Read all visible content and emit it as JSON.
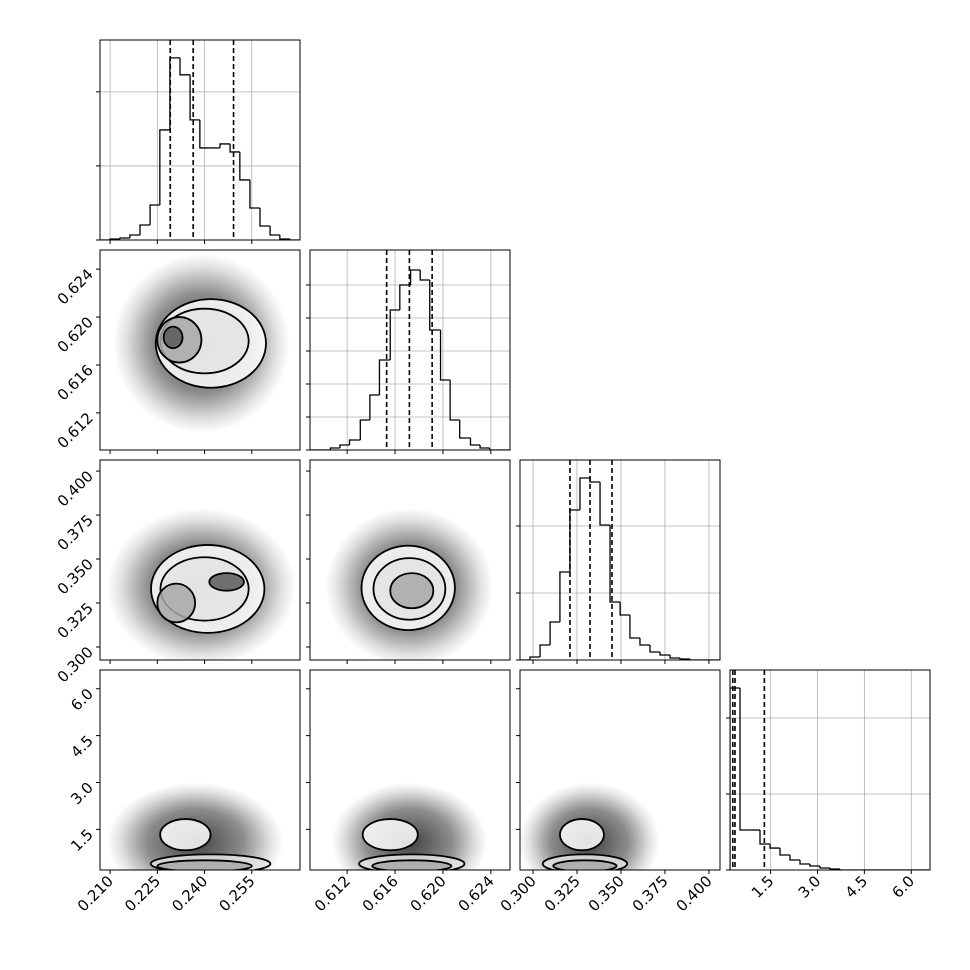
{
  "chart_data": {
    "type": "corner",
    "params": [
      {
        "lim": [
          0.2068,
          0.2703
        ],
        "ticks": [
          {
            "value": 0.21,
            "label": "0.210"
          },
          0.225,
          {
            "value": 0.24,
            "label": "0.240"
          },
          0.255
        ],
        "quantiles": [
          0.2291,
          0.2364,
          0.2492
        ],
        "hist": {
          "bins": [
            0.2068,
            0.21,
            0.2132,
            0.2163,
            0.2195,
            0.2227,
            0.2258,
            0.229,
            0.2322,
            0.2354,
            0.2385,
            0.2417,
            0.2449,
            0.2481,
            0.2512,
            0.2544,
            0.2576,
            0.2608,
            0.2639,
            0.2671,
            0.2703
          ],
          "values": [
            0,
            14,
            27,
            68,
            203,
            473,
            1486,
            2459,
            2230,
            1622,
            1243,
            1243,
            1297,
            1189,
            811,
            432,
            189,
            68,
            14,
            0
          ],
          "ylim": [
            0,
            2700
          ],
          "yticks": [
            0,
            1000,
            2000
          ]
        }
      },
      {
        "lim": [
          0.6089,
          0.6256
        ],
        "ticks": [
          0.612,
          0.616,
          {
            "value": 0.62,
            "label": "0.620"
          },
          0.624
        ],
        "quantiles": [
          0.6153,
          0.6172,
          0.6191
        ],
        "hist": {
          "bins": [
            0.6089,
            0.6097,
            0.6106,
            0.6114,
            0.6122,
            0.6131,
            0.6139,
            0.6147,
            0.6156,
            0.6164,
            0.6173,
            0.6181,
            0.6189,
            0.6198,
            0.6206,
            0.6214,
            0.6223,
            0.6231,
            0.6239,
            0.6248,
            0.6256
          ],
          "values": [
            0,
            0,
            61,
            152,
            303,
            909,
            1667,
            2727,
            4242,
            5000,
            5455,
            5152,
            3636,
            2121,
            909,
            364,
            152,
            61,
            0,
            0
          ],
          "ylim": [
            0,
            6060
          ],
          "yticks": [
            0,
            1000,
            2000,
            3000,
            4000,
            5000
          ]
        },
        "pairs": [
          {
            "cloud": {
              "x": 0.239,
              "y": 0.6178,
              "rx": 0.028,
              "ry": 0.0075
            },
            "contours": [
              {
                "x": 0.242,
                "y": 0.6178,
                "rx": 0.0175,
                "ry": 0.0037
              },
              {
                "x": 0.24,
                "y": 0.618,
                "rx": 0.014,
                "ry": 0.0027
              },
              {
                "x": 0.232,
                "y": 0.6181,
                "rx": 0.007,
                "ry": 0.0019
              },
              {
                "x": 0.23,
                "y": 0.6183,
                "rx": 0.003,
                "ry": 0.0009
              }
            ]
          }
        ]
      },
      {
        "lim": [
          0.2926,
          0.4063
        ],
        "ticks": [
          {
            "value": 0.3,
            "label": "0.300"
          },
          0.325,
          {
            "value": 0.35,
            "label": "0.350"
          },
          0.375,
          {
            "value": 0.4,
            "label": "0.400"
          }
        ],
        "quantiles": [
          0.321,
          0.3324,
          0.3449
        ],
        "hist": {
          "bins": [
            0.2926,
            0.2983,
            0.304,
            0.3097,
            0.3153,
            0.321,
            0.3267,
            0.3324,
            0.3381,
            0.3438,
            0.3495,
            0.3551,
            0.3608,
            0.3665,
            0.3722,
            0.3779,
            0.3836,
            0.3893,
            0.3949,
            0.4006,
            0.4063
          ],
          "values": [
            0,
            45,
            224,
            567,
            1313,
            2239,
            2716,
            2657,
            2015,
            866,
            672,
            328,
            224,
            119,
            75,
            30,
            15,
            0,
            0,
            0
          ],
          "ylim": [
            0,
            2985
          ],
          "yticks": [
            0,
            1000,
            2000
          ]
        },
        "pairs": [
          {
            "cloud": {
              "x": 0.239,
              "y": 0.334,
              "rx": 0.03,
              "ry": 0.045
            },
            "contours": [
              {
                "x": 0.241,
                "y": 0.333,
                "rx": 0.018,
                "ry": 0.025
              },
              {
                "x": 0.24,
                "y": 0.333,
                "rx": 0.014,
                "ry": 0.018
              },
              {
                "x": 0.231,
                "y": 0.325,
                "rx": 0.006,
                "ry": 0.011
              },
              {
                "x": 0.247,
                "y": 0.337,
                "rx": 0.0055,
                "ry": 0.005
              }
            ]
          },
          {
            "cloud": {
              "x": 0.6172,
              "y": 0.334,
              "rx": 0.007,
              "ry": 0.045
            },
            "contours": [
              {
                "x": 0.6171,
                "y": 0.3336,
                "rx": 0.0039,
                "ry": 0.024
              },
              {
                "x": 0.6172,
                "y": 0.333,
                "rx": 0.003,
                "ry": 0.0175
              },
              {
                "x": 0.6174,
                "y": 0.332,
                "rx": 0.0018,
                "ry": 0.01
              }
            ]
          }
        ]
      },
      {
        "lim": [
          0.2,
          6.6
        ],
        "ticks": [
          1.5,
          {
            "value": 3,
            "label": "3.0"
          },
          4.5,
          {
            "value": 6,
            "label": "6.0"
          }
        ],
        "quantiles": [
          0.29,
          0.36,
          1.3
        ],
        "hist": {
          "bins": [
            0.2,
            0.52,
            0.84,
            1.16,
            1.48,
            1.8,
            2.12,
            2.44,
            2.76,
            3.08,
            3.4,
            3.72,
            4.04,
            4.36,
            4.68,
            5.0,
            5.32,
            5.64,
            5.96,
            6.28,
            6.6
          ],
          "values": [
            2395,
            526,
            526,
            342,
            289,
            197,
            132,
            79,
            53,
            26,
            13,
            0,
            0,
            0,
            0,
            0,
            0,
            0,
            0,
            0
          ],
          "ylim": [
            0,
            2632
          ],
          "yticks": [
            0,
            1000,
            2000
          ]
        },
        "pairs": [
          {
            "cloud": {
              "x": 0.237,
              "y": 1.1,
              "rx": 0.028,
              "ry": 1.9
            },
            "contours": [
              {
                "x": 0.2339,
                "y": 1.33,
                "rx": 0.008,
                "ry": 0.5
              },
              {
                "x": 0.2419,
                "y": 0.4,
                "rx": 0.019,
                "ry": 0.3
              },
              {
                "x": 0.24,
                "y": 0.33,
                "rx": 0.015,
                "ry": 0.18
              }
            ]
          },
          {
            "cloud": {
              "x": 0.6172,
              "y": 1.1,
              "rx": 0.0065,
              "ry": 1.9
            },
            "contours": [
              {
                "x": 0.6156,
                "y": 1.33,
                "rx": 0.0023,
                "ry": 0.5
              },
              {
                "x": 0.6174,
                "y": 0.4,
                "rx": 0.0044,
                "ry": 0.3
              },
              {
                "x": 0.6174,
                "y": 0.33,
                "rx": 0.0033,
                "ry": 0.18
              }
            ]
          },
          {
            "cloud": {
              "x": 0.332,
              "y": 1.1,
              "rx": 0.04,
              "ry": 1.9
            },
            "contours": [
              {
                "x": 0.3278,
                "y": 1.33,
                "rx": 0.0125,
                "ry": 0.5
              },
              {
                "x": 0.3295,
                "y": 0.4,
                "rx": 0.024,
                "ry": 0.3
              },
              {
                "x": 0.3295,
                "y": 0.33,
                "rx": 0.018,
                "ry": 0.18
              }
            ]
          }
        ]
      }
    ]
  }
}
